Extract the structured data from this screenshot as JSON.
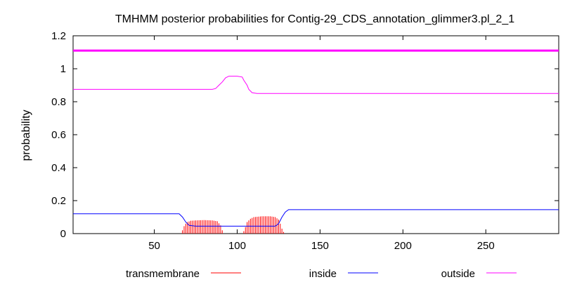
{
  "chart_data": {
    "type": "line",
    "title": "TMHMM posterior probabilities for Contig-29_CDS_annotation_glimmer3.pl_2_1",
    "ylabel": "probability",
    "xlabel": "",
    "xlim": [
      1,
      294
    ],
    "ylim": [
      0,
      1.2
    ],
    "x_ticks": [
      50,
      100,
      150,
      200,
      250
    ],
    "y_ticks": [
      0,
      0.2,
      0.4,
      0.6,
      0.8,
      1,
      1.2
    ],
    "y_tick_labels": [
      "0",
      "0.2",
      "0.4",
      "0.6",
      "0.8",
      "1",
      "1.2"
    ],
    "grid": false,
    "legend_position": "bottom",
    "top_bar": {
      "y": 1.11,
      "color": "#ff00ff"
    },
    "series": [
      {
        "name": "transmembrane",
        "style": "impulses",
        "color": "#ff0000",
        "points": [
          [
            66,
            0.0
          ],
          [
            67,
            0.02
          ],
          [
            68,
            0.045
          ],
          [
            69,
            0.06
          ],
          [
            70,
            0.07
          ],
          [
            72,
            0.078
          ],
          [
            75,
            0.08
          ],
          [
            80,
            0.082
          ],
          [
            85,
            0.08
          ],
          [
            88,
            0.075
          ],
          [
            90,
            0.05
          ],
          [
            91,
            0.02
          ],
          [
            92,
            0.0
          ],
          [
            103,
            0.0
          ],
          [
            104,
            0.015
          ],
          [
            105,
            0.04
          ],
          [
            106,
            0.07
          ],
          [
            108,
            0.09
          ],
          [
            110,
            0.1
          ],
          [
            115,
            0.105
          ],
          [
            120,
            0.105
          ],
          [
            123,
            0.1
          ],
          [
            125,
            0.085
          ],
          [
            126,
            0.06
          ],
          [
            127,
            0.03
          ],
          [
            128,
            0.01
          ],
          [
            129,
            0.0
          ]
        ]
      },
      {
        "name": "inside",
        "style": "line",
        "color": "#0000ff",
        "points": [
          [
            1,
            0.12
          ],
          [
            65,
            0.12
          ],
          [
            67,
            0.1
          ],
          [
            69,
            0.07
          ],
          [
            71,
            0.05
          ],
          [
            75,
            0.045
          ],
          [
            90,
            0.045
          ],
          [
            100,
            0.045
          ],
          [
            110,
            0.045
          ],
          [
            123,
            0.045
          ],
          [
            125,
            0.06
          ],
          [
            127,
            0.1
          ],
          [
            129,
            0.13
          ],
          [
            131,
            0.145
          ],
          [
            150,
            0.145
          ],
          [
            200,
            0.145
          ],
          [
            250,
            0.145
          ],
          [
            294,
            0.145
          ]
        ]
      },
      {
        "name": "outside",
        "style": "line",
        "color": "#ff00ff",
        "points": [
          [
            1,
            0.875
          ],
          [
            60,
            0.875
          ],
          [
            85,
            0.875
          ],
          [
            87,
            0.88
          ],
          [
            89,
            0.9
          ],
          [
            91,
            0.92
          ],
          [
            93,
            0.945
          ],
          [
            95,
            0.955
          ],
          [
            100,
            0.955
          ],
          [
            103,
            0.95
          ],
          [
            104,
            0.93
          ],
          [
            106,
            0.9
          ],
          [
            107,
            0.875
          ],
          [
            109,
            0.855
          ],
          [
            112,
            0.85
          ],
          [
            150,
            0.85
          ],
          [
            200,
            0.85
          ],
          [
            250,
            0.85
          ],
          [
            294,
            0.85
          ]
        ]
      }
    ]
  }
}
